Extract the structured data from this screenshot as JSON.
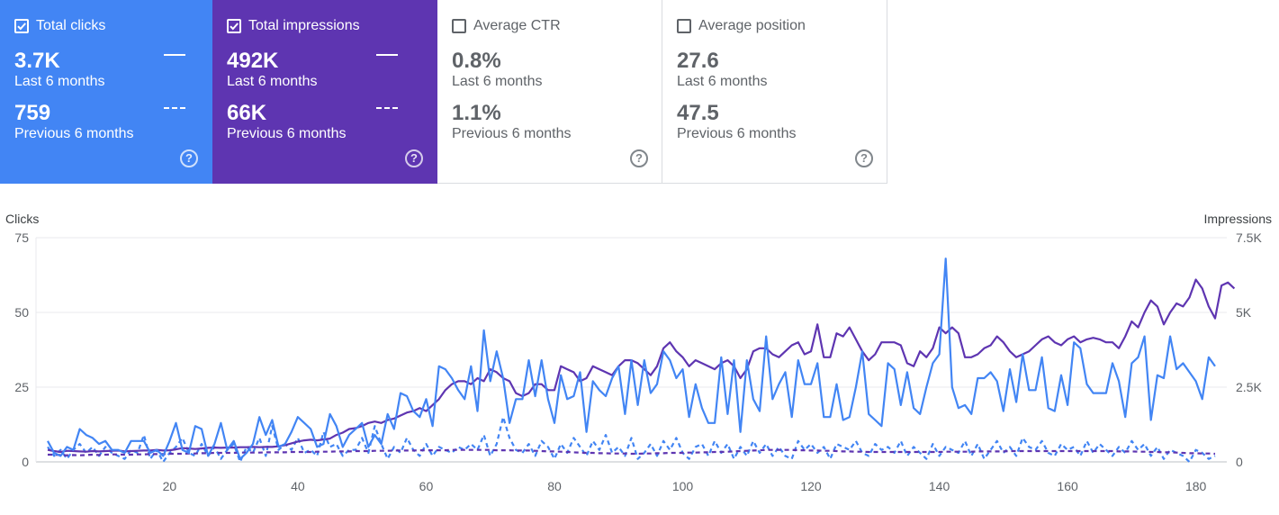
{
  "cards": [
    {
      "label": "Total clicks",
      "checked": true,
      "value": "3.7K",
      "period": "Last 6 months",
      "prev_value": "759",
      "prev_period": "Previous 6 months",
      "bg": "#4285f4"
    },
    {
      "label": "Total impressions",
      "checked": true,
      "value": "492K",
      "period": "Last 6 months",
      "prev_value": "66K",
      "prev_period": "Previous 6 months",
      "bg": "#5e35b1"
    },
    {
      "label": "Average CTR",
      "checked": false,
      "value": "0.8%",
      "period": "Last 6 months",
      "prev_value": "1.1%",
      "prev_period": "Previous 6 months",
      "bg": "#ffffff"
    },
    {
      "label": "Average position",
      "checked": false,
      "value": "27.6",
      "period": "Last 6 months",
      "prev_value": "47.5",
      "prev_period": "Previous 6 months",
      "bg": "#ffffff"
    }
  ],
  "help_glyph": "?",
  "chart_data": {
    "type": "line",
    "ylabel_left": "Clicks",
    "ylabel_right": "Impressions",
    "xlim": [
      1,
      183
    ],
    "ylim_left": [
      0,
      75
    ],
    "ylim_right": [
      0,
      7500
    ],
    "x_ticks": [
      20,
      40,
      60,
      80,
      100,
      120,
      140,
      160,
      180
    ],
    "y_ticks_left": [
      "0",
      "25",
      "50",
      "75"
    ],
    "y_ticks_right": [
      "0",
      "2.5K",
      "5K",
      "7.5K"
    ],
    "grid": true,
    "colors": {
      "clicks": "#4285f4",
      "impressions": "#5e35b1"
    },
    "series": [
      {
        "name": "Clicks (Last 6 months)",
        "axis": "left",
        "style": "solid",
        "color": "#4285f4",
        "values": [
          7,
          3,
          2,
          5,
          4,
          11,
          9,
          8,
          6,
          7,
          4,
          4,
          3,
          7,
          7,
          7,
          3,
          4,
          2,
          7,
          13,
          4,
          3,
          12,
          11,
          2,
          6,
          13,
          4,
          7,
          1,
          3,
          6,
          15,
          9,
          14,
          5,
          6,
          10,
          15,
          13,
          11,
          5,
          6,
          16,
          12,
          5,
          9,
          11,
          13,
          5,
          9,
          6,
          16,
          11,
          23,
          22,
          17,
          15,
          21,
          12,
          32,
          31,
          28,
          24,
          21,
          32,
          17,
          44,
          27,
          37,
          28,
          13,
          21,
          21,
          34,
          22,
          34,
          21,
          13,
          29,
          21,
          22,
          30,
          10,
          27,
          24,
          22,
          28,
          32,
          16,
          34,
          19,
          34,
          23,
          26,
          37,
          34,
          28,
          31,
          15,
          26,
          18,
          13,
          13,
          35,
          16,
          34,
          10,
          34,
          21,
          17,
          42,
          21,
          26,
          30,
          15,
          34,
          26,
          26,
          33,
          15,
          15,
          26,
          14,
          15,
          25,
          37,
          16,
          14,
          12,
          33,
          31,
          19,
          30,
          18,
          16,
          25,
          33,
          36,
          68,
          25,
          18,
          19,
          16,
          28,
          28,
          30,
          27,
          17,
          31,
          20,
          36,
          24,
          24,
          35,
          18,
          17,
          29,
          19,
          40,
          38,
          26,
          23,
          23,
          23,
          33,
          27,
          15,
          33,
          35,
          42,
          14,
          29,
          28,
          42,
          31,
          33,
          30,
          27,
          21,
          35,
          32
        ]
      },
      {
        "name": "Clicks (Previous 6 months)",
        "axis": "left",
        "style": "dashed",
        "color": "#4285f4",
        "values": [
          5,
          2,
          4,
          1,
          4,
          6,
          3,
          5,
          2,
          5,
          3,
          2,
          1,
          4,
          3,
          9,
          1,
          4,
          0,
          3,
          5,
          8,
          3,
          2,
          6,
          2,
          5,
          1,
          4,
          6,
          0,
          5,
          3,
          8,
          2,
          12,
          4,
          6,
          4,
          8,
          3,
          4,
          2,
          10,
          5,
          6,
          2,
          4,
          4,
          8,
          3,
          12,
          6,
          1,
          5,
          3,
          8,
          4,
          2,
          6,
          2,
          5,
          4,
          3,
          5,
          4,
          6,
          4,
          9,
          2,
          6,
          15,
          8,
          4,
          3,
          6,
          2,
          7,
          5,
          1,
          6,
          3,
          8,
          5,
          2,
          7,
          4,
          9,
          3,
          5,
          2,
          8,
          1,
          3,
          6,
          2,
          7,
          4,
          8,
          3,
          1,
          5,
          6,
          2,
          7,
          3,
          6,
          1,
          5,
          2,
          7,
          3,
          6,
          2,
          5,
          2,
          1,
          7,
          4,
          6,
          3,
          5,
          1,
          6,
          5,
          4,
          7,
          3,
          2,
          6,
          4,
          5,
          3,
          7,
          2,
          5,
          3,
          1,
          6,
          2,
          5,
          4,
          3,
          7,
          2,
          6,
          1,
          4,
          7,
          3,
          5,
          2,
          8,
          5,
          4,
          7,
          3,
          2,
          6,
          4,
          5,
          2,
          7,
          3,
          6,
          4,
          2,
          5,
          3,
          7,
          4,
          6,
          2,
          5,
          1,
          4,
          3,
          2,
          0,
          4,
          3,
          1,
          2
        ]
      },
      {
        "name": "Impressions (Last 6 months)",
        "axis": "right",
        "style": "solid",
        "color": "#5e35b1",
        "values": [
          400,
          360,
          330,
          370,
          360,
          350,
          340,
          360,
          350,
          360,
          370,
          380,
          350,
          360,
          370,
          380,
          380,
          400,
          380,
          390,
          420,
          460,
          450,
          430,
          450,
          470,
          480,
          470,
          480,
          480,
          490,
          490,
          500,
          490,
          500,
          500,
          520,
          560,
          620,
          680,
          720,
          740,
          720,
          750,
          780,
          900,
          980,
          1100,
          1130,
          1200,
          1300,
          1350,
          1300,
          1400,
          1450,
          1550,
          1650,
          1700,
          1800,
          1700,
          1900,
          2100,
          2400,
          2600,
          2700,
          2700,
          2600,
          2800,
          2700,
          3100,
          3000,
          2800,
          2700,
          2300,
          2200,
          2300,
          2600,
          2600,
          2400,
          2400,
          3200,
          3100,
          3000,
          2700,
          2800,
          3200,
          3100,
          3000,
          2900,
          3200,
          3400,
          3400,
          3300,
          3100,
          2900,
          3200,
          3800,
          4000,
          3700,
          3500,
          3200,
          3400,
          3300,
          3200,
          3100,
          3300,
          3400,
          3200,
          2800,
          3100,
          3700,
          3800,
          3800,
          3600,
          3500,
          3700,
          3900,
          4000,
          3600,
          3700,
          4600,
          3500,
          3500,
          4300,
          4200,
          4500,
          4100,
          3700,
          3400,
          3600,
          4000,
          4000,
          4000,
          3900,
          3300,
          3200,
          3700,
          3500,
          3800,
          4500,
          4300,
          4500,
          4300,
          3500,
          3500,
          3600,
          3800,
          3900,
          4200,
          4000,
          3700,
          3500,
          3600,
          3700,
          3900,
          4100,
          4200,
          4000,
          3900,
          4100,
          4200,
          4000,
          4100,
          4150,
          4100,
          4000,
          4000,
          3800,
          4200,
          4700,
          4500,
          5000,
          5400,
          5200,
          4600,
          5000,
          5300,
          5200,
          5500,
          6100,
          5800,
          5200,
          4800,
          5900,
          6000,
          5800
        ]
      },
      {
        "name": "Impressions (Previous 6 months)",
        "axis": "right",
        "style": "dashed",
        "color": "#5e35b1",
        "values": [
          240,
          240,
          230,
          220,
          230,
          220,
          230,
          240,
          230,
          240,
          250,
          250,
          240,
          240,
          250,
          250,
          260,
          260,
          260,
          270,
          270,
          270,
          280,
          280,
          290,
          290,
          300,
          300,
          300,
          300,
          310,
          310,
          310,
          310,
          320,
          320,
          320,
          320,
          330,
          330,
          330,
          330,
          340,
          340,
          340,
          350,
          350,
          350,
          360,
          360,
          360,
          370,
          370,
          370,
          380,
          380,
          380,
          380,
          390,
          390,
          390,
          390,
          390,
          400,
          400,
          400,
          400,
          400,
          400,
          400,
          390,
          390,
          390,
          380,
          380,
          380,
          370,
          360,
          350,
          350,
          340,
          330,
          320,
          310,
          300,
          300,
          290,
          290,
          280,
          280,
          280,
          270,
          270,
          280,
          280,
          290,
          290,
          300,
          300,
          300,
          310,
          310,
          320,
          320,
          330,
          330,
          340,
          350,
          360,
          370,
          380,
          390,
          400,
          400,
          400,
          400,
          400,
          390,
          390,
          380,
          380,
          370,
          370,
          360,
          350,
          350,
          340,
          340,
          330,
          330,
          330,
          330,
          330,
          330,
          330,
          330,
          330,
          330,
          330,
          330,
          340,
          340,
          340,
          340,
          340,
          350,
          350,
          350,
          350,
          350,
          360,
          360,
          360,
          360,
          360,
          360,
          360,
          360,
          360,
          360,
          360,
          360,
          360,
          360,
          360,
          360,
          360,
          350,
          350,
          350,
          340,
          340,
          330,
          330,
          320,
          320,
          310,
          300,
          290,
          290,
          280,
          280,
          270
        ]
      }
    ]
  }
}
